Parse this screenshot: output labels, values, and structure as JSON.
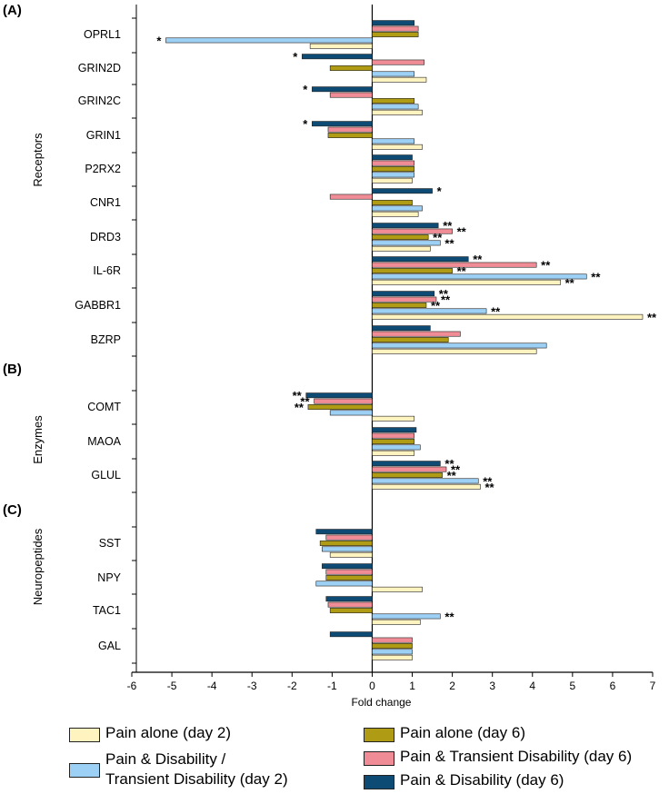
{
  "chart_data": {
    "type": "bar",
    "orientation": "horizontal",
    "xlabel": "Fold change",
    "xlim": [
      -6,
      7
    ],
    "xticks": [
      -6,
      -5,
      -4,
      -3,
      -2,
      -1,
      0,
      1,
      2,
      3,
      4,
      5,
      6,
      7
    ],
    "sections": [
      {
        "id": "A",
        "label": "(A)",
        "ylabel": "Receptors",
        "genes": [
          "OPRL1",
          "GRIN2D",
          "GRIN2C",
          "GRIN1",
          "P2RX2",
          "CNR1",
          "DRD3",
          "IL-6R",
          "GABBR1",
          "BZRP"
        ]
      },
      {
        "id": "B",
        "label": "(B)",
        "ylabel": "Enzymes",
        "genes": [
          "COMT",
          "MAOA",
          "GLUL"
        ]
      },
      {
        "id": "C",
        "label": "(C)",
        "ylabel": "Neuropeptides",
        "genes": [
          "SST",
          "NPY",
          "TAC1",
          "GAL"
        ]
      }
    ],
    "series": [
      {
        "name": "Pain & Disability (day 6)",
        "color": "#0d4a74"
      },
      {
        "name": "Pain & Transient Disability (day 6)",
        "color": "#f08c96"
      },
      {
        "name": "Pain alone (day 6)",
        "color": "#b09c14"
      },
      {
        "name": "Pain & Disability / Transient Disability (day 2)",
        "color": "#9cd0f4"
      },
      {
        "name": "Pain alone (day 2)",
        "color": "#fff4c0"
      }
    ],
    "values": {
      "OPRL1": [
        1.05,
        1.15,
        1.15,
        -5.15,
        -1.55
      ],
      "GRIN2D": [
        -1.75,
        1.3,
        -1.05,
        1.05,
        1.35
      ],
      "GRIN2C": [
        -1.5,
        -1.05,
        1.05,
        1.15,
        1.25
      ],
      "GRIN1": [
        -1.5,
        -1.1,
        -1.1,
        1.05,
        1.25
      ],
      "P2RX2": [
        1.0,
        1.05,
        1.05,
        1.05,
        1.0
      ],
      "CNR1": [
        1.5,
        -1.05,
        1.0,
        1.25,
        1.15
      ],
      "DRD3": [
        1.65,
        2.0,
        1.4,
        1.7,
        1.45
      ],
      "IL-6R": [
        2.4,
        4.1,
        2.0,
        5.35,
        4.7
      ],
      "GABBR1": [
        1.55,
        1.6,
        1.35,
        2.85,
        6.75
      ],
      "BZRP": [
        1.45,
        2.2,
        1.9,
        4.35,
        4.1
      ],
      "COMT": [
        -1.65,
        -1.45,
        -1.6,
        -1.05,
        1.05
      ],
      "MAOA": [
        1.1,
        1.05,
        1.05,
        1.2,
        1.05
      ],
      "GLUL": [
        1.7,
        1.85,
        1.75,
        2.65,
        2.7
      ],
      "SST": [
        -1.4,
        -1.15,
        -1.3,
        -1.25,
        -1.05
      ],
      "NPY": [
        -1.25,
        -1.15,
        -1.15,
        -1.4,
        1.25
      ],
      "TAC1": [
        -1.15,
        -1.1,
        -1.05,
        1.7,
        1.2
      ],
      "GAL": [
        -1.05,
        1.0,
        1.0,
        1.0,
        1.0
      ]
    },
    "annotations": {
      "OPRL1": [
        "",
        "",
        "",
        "*",
        ""
      ],
      "GRIN2D": [
        "*",
        "",
        "",
        "",
        ""
      ],
      "GRIN2C": [
        "*",
        "",
        "",
        "",
        ""
      ],
      "GRIN1": [
        "*",
        "",
        "",
        "",
        ""
      ],
      "CNR1": [
        "*",
        "",
        "",
        "",
        ""
      ],
      "DRD3": [
        "**",
        "**",
        "**",
        "**",
        ""
      ],
      "IL-6R": [
        "**",
        "**",
        "**",
        "**",
        "**"
      ],
      "GABBR1": [
        "**",
        "**",
        "**",
        "**",
        "**"
      ],
      "COMT": [
        "**",
        "**",
        "**",
        "",
        ""
      ],
      "GLUL": [
        "**",
        "**",
        "**",
        "**",
        "**"
      ],
      "TAC1": [
        "",
        "",
        "",
        "**",
        ""
      ]
    }
  },
  "legend": {
    "items": [
      {
        "label": "Pain alone (day 2)",
        "color": "#fff4c0"
      },
      {
        "label": "Pain & Disability /",
        "label2": "Transient Disability  (day 2)",
        "color": "#9cd0f4"
      },
      {
        "label": "Pain alone (day 6)",
        "color": "#b09c14"
      },
      {
        "label": "Pain & Transient Disability (day 6)",
        "color": "#f08c96"
      },
      {
        "label": "Pain & Disability (day 6)",
        "color": "#0d4a74"
      }
    ]
  }
}
